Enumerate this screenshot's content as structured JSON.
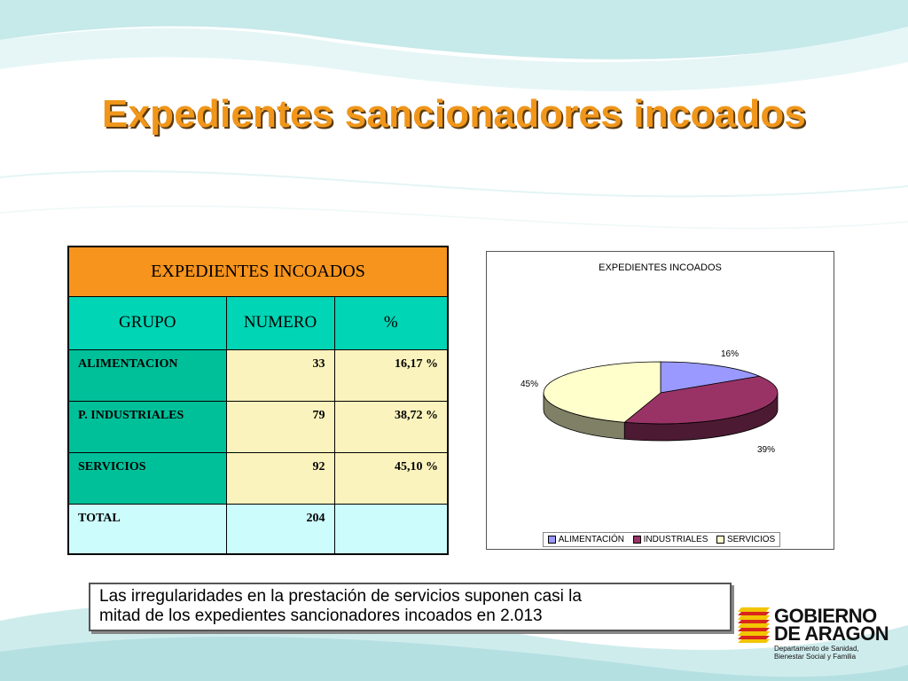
{
  "slide": {
    "title": "Expedientes sancionadores incoados",
    "note_line1": "Las irregularidades en la prestación de servicios suponen casi la",
    "note_line2": "mitad de los expedientes sancionadores incoados en 2.013"
  },
  "table": {
    "title": "EXPEDIENTES INCOADOS",
    "headers": [
      "GRUPO",
      "NUMERO",
      "%"
    ],
    "rows": [
      {
        "grupo": "ALIMENTACION",
        "numero": "33",
        "pct": "16,17 %"
      },
      {
        "grupo": "P. INDUSTRIALES",
        "numero": "79",
        "pct": "38,72 %"
      },
      {
        "grupo": "SERVICIOS",
        "numero": "92",
        "pct": "45,10 %"
      }
    ],
    "total": {
      "grupo": "TOTAL",
      "numero": "204",
      "pct": ""
    }
  },
  "chart_data": {
    "type": "pie",
    "title": "EXPEDIENTES INCOADOS",
    "categories": [
      "ALIMENTACIÓN",
      "INDUSTRIALES",
      "SERVICIOS"
    ],
    "values": [
      16,
      39,
      45
    ],
    "labels": [
      "16%",
      "39%",
      "45%"
    ],
    "colors": [
      "#9999ff",
      "#993366",
      "#ffffcc"
    ],
    "side_colors": [
      "#5a5ab0",
      "#4d1a33",
      "#808066"
    ],
    "legend_position": "bottom"
  },
  "logo": {
    "line1": "GOBIERNO",
    "line2": "DE ARAGON",
    "dept1": "Departamento de Sanidad,",
    "dept2": "Bienestar Social y Familia"
  }
}
